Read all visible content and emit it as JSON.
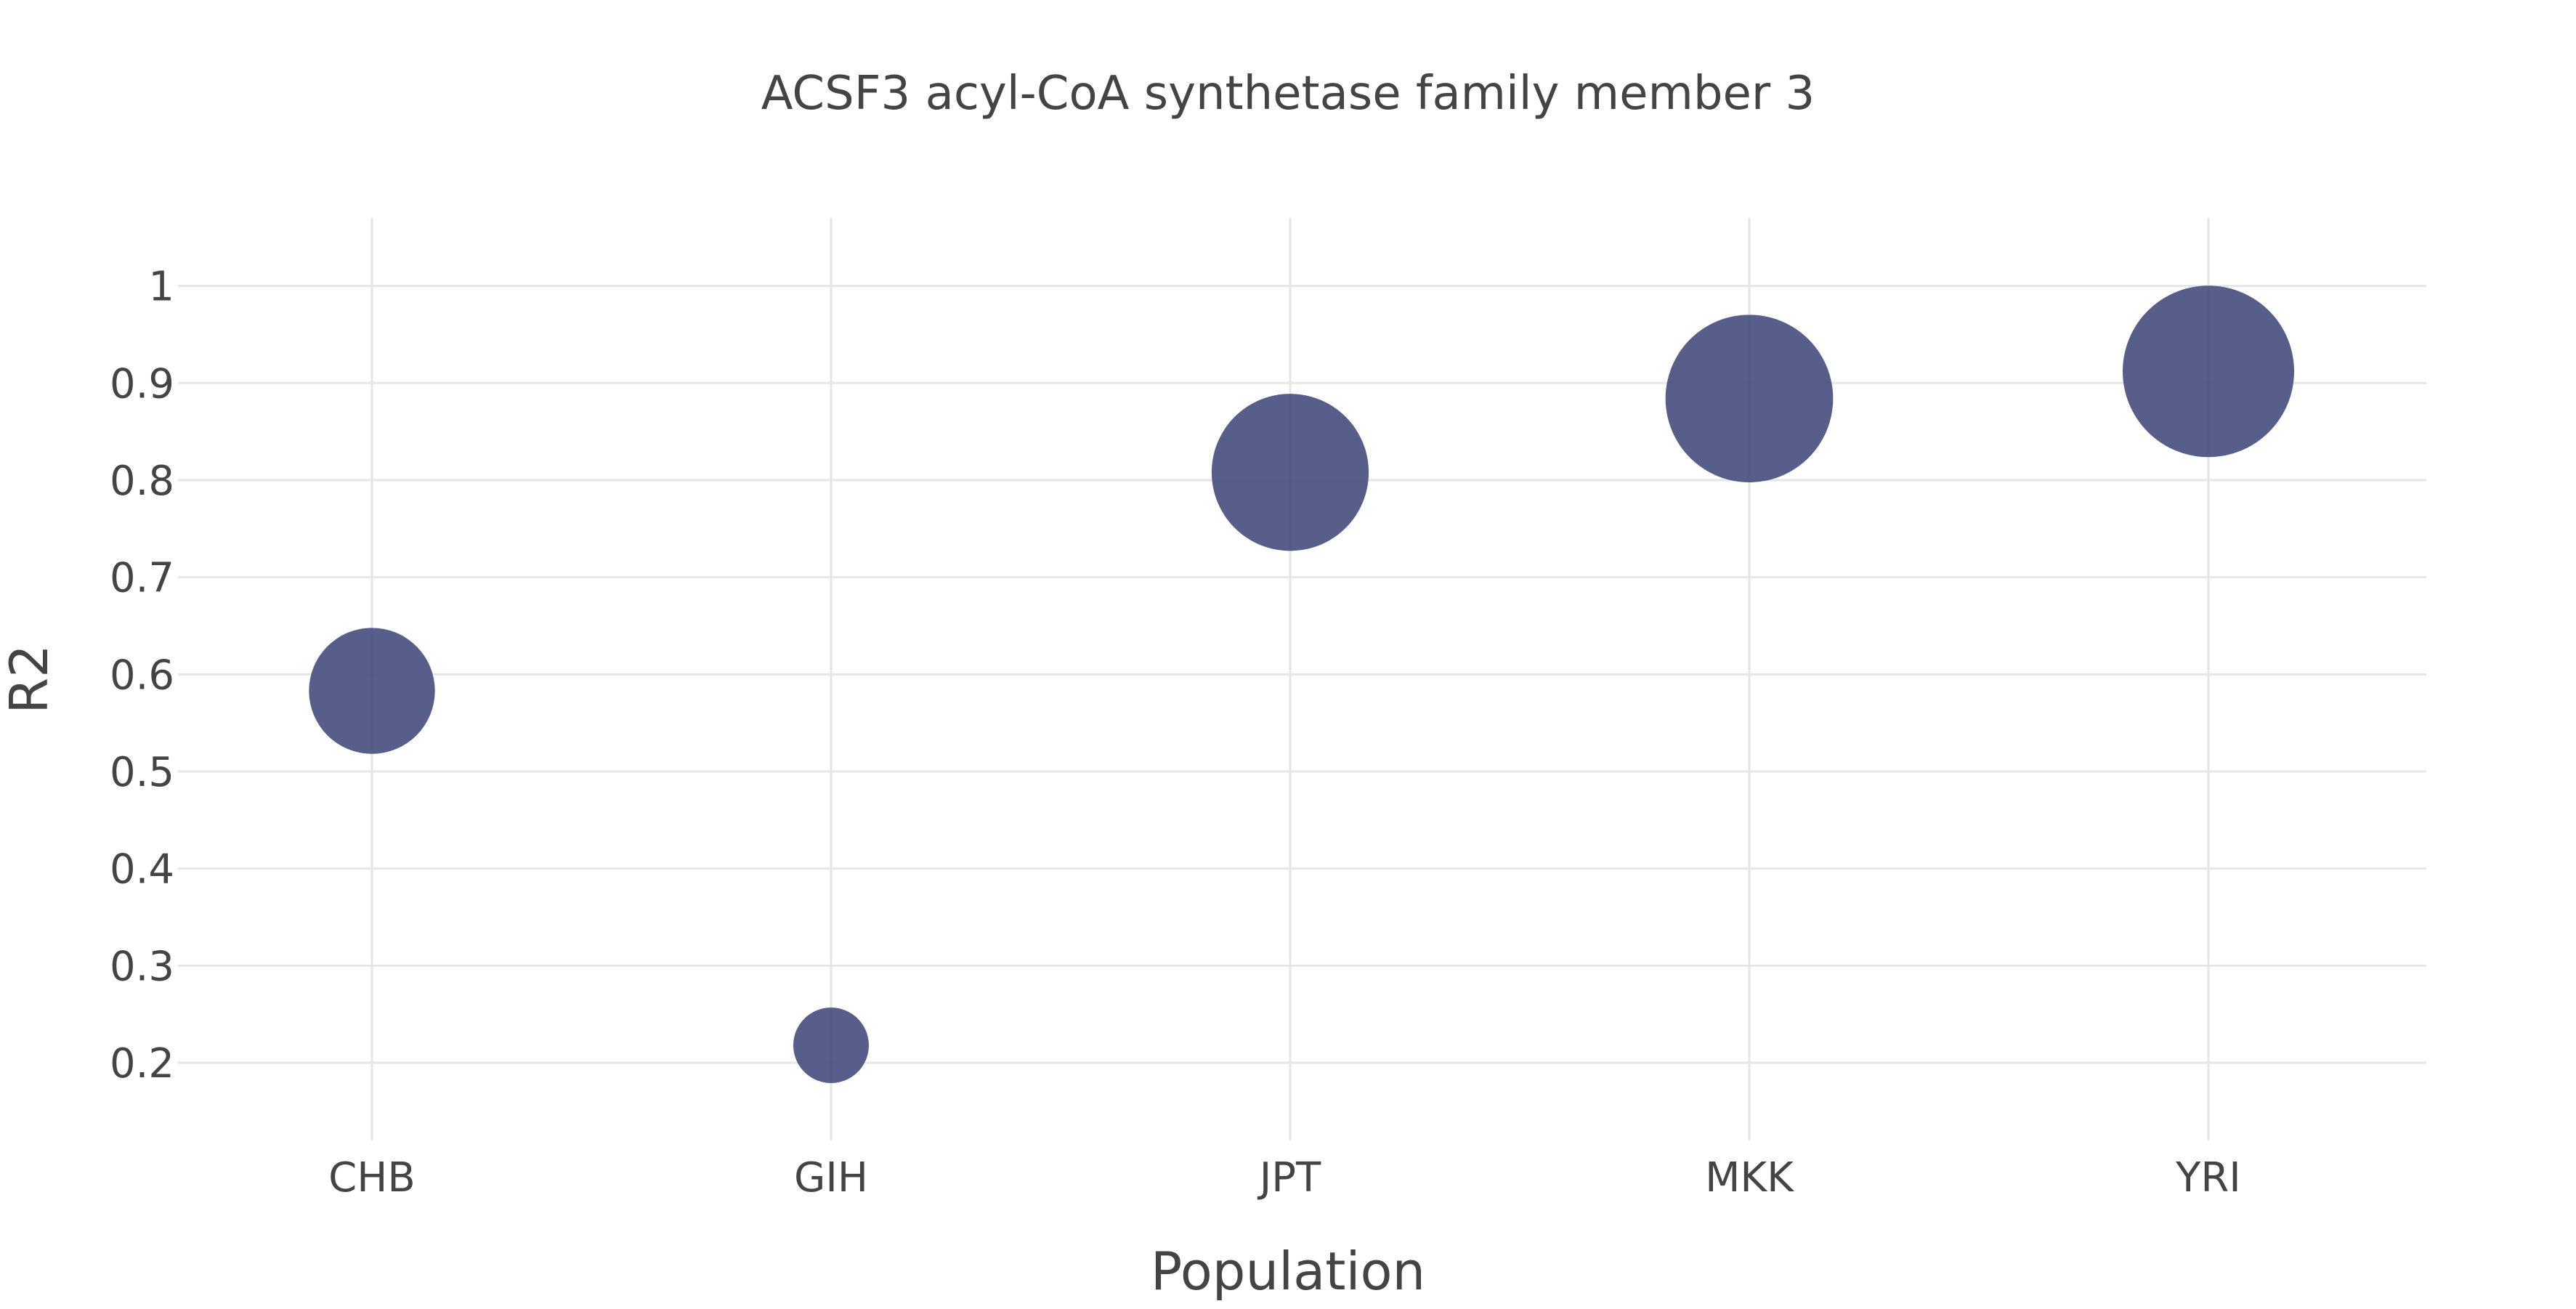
{
  "chart_data": {
    "type": "scatter",
    "title": "ACSF3 acyl-CoA synthetase family member 3",
    "xlabel": "Population",
    "ylabel": "R2",
    "categories": [
      "CHB",
      "GIH",
      "JPT",
      "MKK",
      "YRI"
    ],
    "values": [
      0.583,
      0.218,
      0.808,
      0.884,
      0.912
    ],
    "ylim": [
      0.12,
      1.07
    ],
    "yticks": [
      "0.2",
      "0.3",
      "0.4",
      "0.5",
      "0.6",
      "0.7",
      "0.8",
      "0.9",
      "1"
    ],
    "yticks_values": [
      0.2,
      0.3,
      0.4,
      0.5,
      0.6,
      0.7,
      0.8,
      0.9,
      1.0
    ],
    "marker_color": "#4a5080",
    "grid": true,
    "legend": "none"
  }
}
